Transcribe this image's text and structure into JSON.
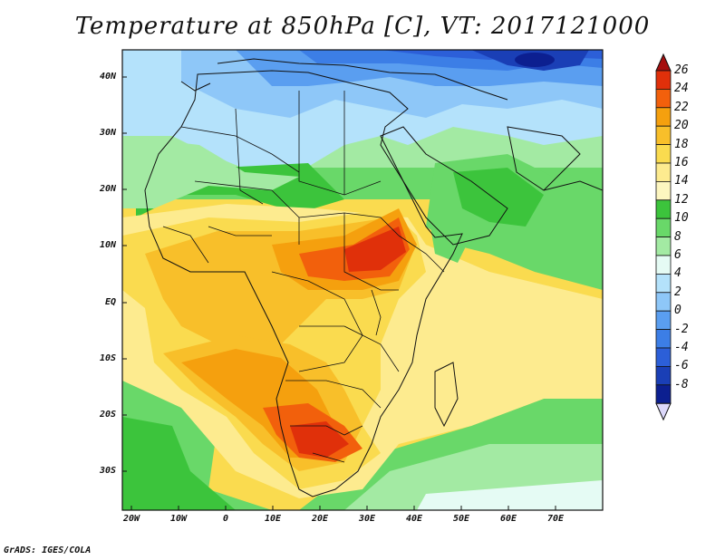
{
  "title": "Temperature at 850hPa [C], VT: 2017121000",
  "credit": "GrADS: IGES/COLA",
  "y_axis_labels": [
    "40N",
    "30N",
    "20N",
    "10N",
    "EQ",
    "10S",
    "20S",
    "30S"
  ],
  "x_axis_labels": [
    "20W",
    "10W",
    "0",
    "10E",
    "20E",
    "30E",
    "40E",
    "50E",
    "60E",
    "70E"
  ],
  "colorbar": {
    "labels": [
      "26",
      "24",
      "22",
      "20",
      "18",
      "16",
      "14",
      "12",
      "10",
      "8",
      "6",
      "4",
      "2",
      "0",
      "-2",
      "-4",
      "-6",
      "-8"
    ],
    "colors": [
      "#a50f0f",
      "#e0300a",
      "#f2600c",
      "#f5a00e",
      "#f8bf2a",
      "#fadb4f",
      "#fdeb8f",
      "#fdf6c0",
      "#3cc43c",
      "#69d869",
      "#a3eaa3",
      "#e5fbf4",
      "#b4e2fb",
      "#8ec7f8",
      "#5a9ef0",
      "#3c7ee6",
      "#2c5fd8",
      "#1a3fb6",
      "#0c1f90",
      "#dcd8fa"
    ]
  },
  "map": {
    "lon_range": [
      -22,
      80
    ],
    "lat_range": [
      -37,
      45
    ],
    "variable": "Temperature at 850hPa",
    "units": "C",
    "valid_time": "2017121000"
  }
}
